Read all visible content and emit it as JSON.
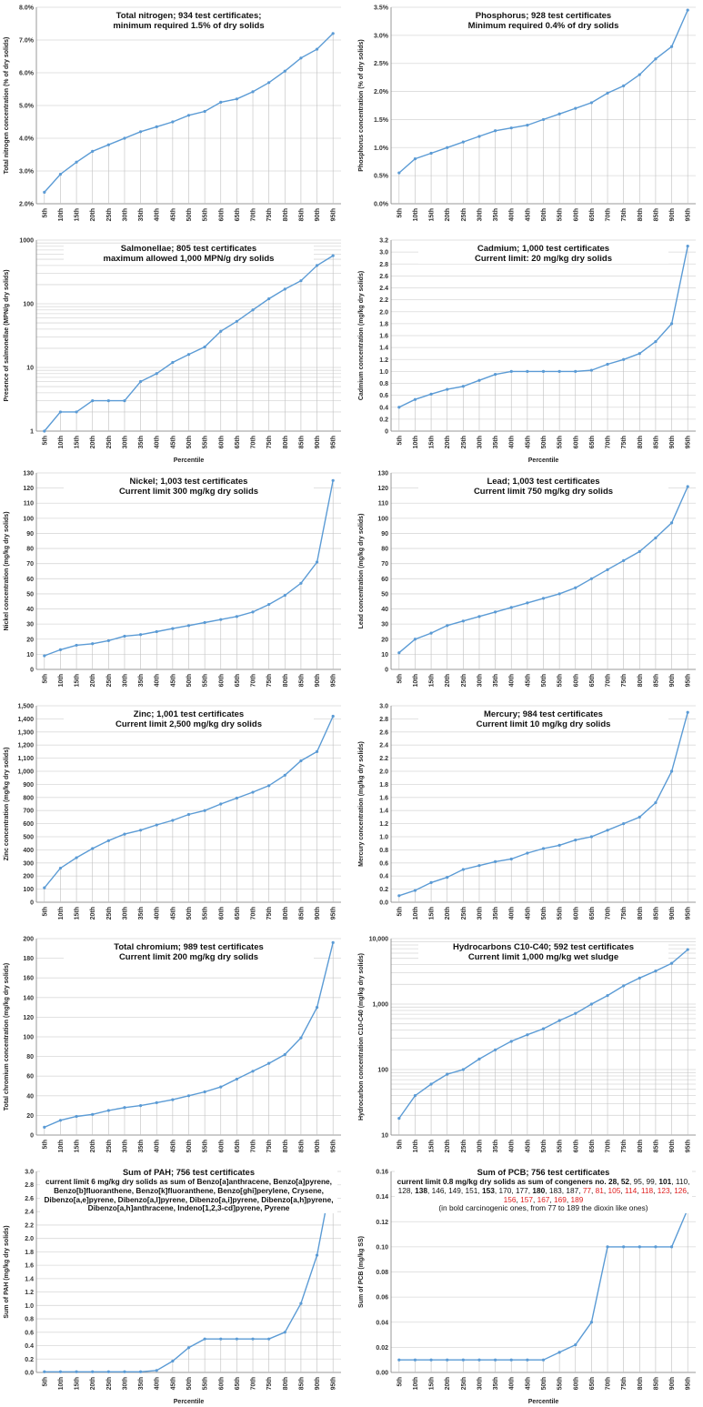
{
  "chart_data": [
    {
      "type": "line",
      "title": "Total nitrogen; 934 test certificates;",
      "subtitle": "minimum required 1.5% of dry solids",
      "ylabel": "Total nitrogen concentration (% of dry solids)",
      "xlabel": "",
      "yscale": "linear",
      "ylim": [
        2.0,
        8.0
      ],
      "yticks": [
        2.0,
        3.0,
        4.0,
        5.0,
        6.0,
        7.0,
        8.0
      ],
      "ytick_labels": [
        "2.0%",
        "3.0%",
        "4.0%",
        "5.0%",
        "6.0%",
        "7.0%",
        "8.0%"
      ],
      "categories": [
        "5th",
        "10th",
        "15th",
        "20th",
        "25th",
        "30th",
        "35th",
        "40th",
        "45th",
        "50th",
        "55th",
        "60th",
        "65th",
        "70th",
        "75th",
        "80th",
        "85th",
        "90th",
        "95th"
      ],
      "values": [
        2.35,
        2.9,
        3.27,
        3.6,
        3.8,
        4.0,
        4.2,
        4.35,
        4.5,
        4.7,
        4.82,
        5.1,
        5.2,
        5.42,
        5.7,
        6.05,
        6.45,
        6.72,
        7.2
      ],
      "grid": "horizontal"
    },
    {
      "type": "line",
      "title": "Phosphorus; 928 test certificates",
      "subtitle": "Minimum required 0.4% of dry solids",
      "ylabel": "Phosphorus concentration (% of dry solids)",
      "xlabel": "",
      "yscale": "linear",
      "ylim": [
        0.0,
        3.5
      ],
      "yticks": [
        0.0,
        0.5,
        1.0,
        1.5,
        2.0,
        2.5,
        3.0,
        3.5
      ],
      "ytick_labels": [
        "0.0%",
        "0.5%",
        "1.0%",
        "1.5%",
        "2.0%",
        "2.5%",
        "3.0%",
        "3.5%"
      ],
      "categories": [
        "5th",
        "10th",
        "15th",
        "20th",
        "25th",
        "30th",
        "35th",
        "40th",
        "45th",
        "50th",
        "55th",
        "60th",
        "65th",
        "70th",
        "75th",
        "80th",
        "85th",
        "90th",
        "95th"
      ],
      "values": [
        0.55,
        0.8,
        0.9,
        1.0,
        1.1,
        1.2,
        1.3,
        1.35,
        1.4,
        1.5,
        1.6,
        1.7,
        1.8,
        1.97,
        2.1,
        2.3,
        2.58,
        2.8,
        3.45
      ],
      "grid": "horizontal"
    },
    {
      "type": "line",
      "title": "Salmonellae; 805 test certificates",
      "subtitle": "maximum allowed 1,000 MPN/g dry solids",
      "ylabel": "Presence of salmonellae (MPN/g dry solids)",
      "xlabel": "Percentile",
      "yscale": "log",
      "ylim": [
        1,
        1000
      ],
      "yticks": [
        1,
        10,
        100,
        1000
      ],
      "ytick_labels": [
        "1",
        "10",
        "100",
        "1000"
      ],
      "categories": [
        "5th",
        "10th",
        "15th",
        "20th",
        "25th",
        "30th",
        "35th",
        "40th",
        "45th",
        "50th",
        "55th",
        "60th",
        "65th",
        "70th",
        "75th",
        "80th",
        "85th",
        "90th",
        "95th"
      ],
      "values": [
        1,
        2,
        2,
        3,
        3,
        3,
        6,
        8,
        12,
        16,
        21,
        37,
        53,
        80,
        120,
        170,
        230,
        400,
        570
      ],
      "grid": "log-minor"
    },
    {
      "type": "line",
      "title": "Cadmium; 1,000 test certificates",
      "subtitle": "Current limit: 20 mg/kg dry solids",
      "ylabel": "Cadmium concentration (mg/kg dry solids)",
      "xlabel": "Percentile",
      "yscale": "linear",
      "ylim": [
        0,
        3.2
      ],
      "yticks": [
        0,
        0.2,
        0.4,
        0.6,
        0.8,
        1.0,
        1.2,
        1.4,
        1.6,
        1.8,
        2.0,
        2.2,
        2.4,
        2.6,
        2.8,
        3.0,
        3.2
      ],
      "ytick_labels": [
        "0",
        "0.2",
        "0.4",
        "0.6",
        "0.8",
        "1.0",
        "1.2",
        "1.4",
        "1.6",
        "1.8",
        "2.0",
        "2.2",
        "2.4",
        "2.6",
        "2.8",
        "3.0",
        "3.2"
      ],
      "categories": [
        "5th",
        "10th",
        "15th",
        "20th",
        "25th",
        "30th",
        "35th",
        "40th",
        "45th",
        "50th",
        "55th",
        "60th",
        "65th",
        "70th",
        "75th",
        "80th",
        "85th",
        "90th",
        "95th"
      ],
      "values": [
        0.4,
        0.53,
        0.62,
        0.7,
        0.75,
        0.85,
        0.95,
        1.0,
        1.0,
        1.0,
        1.0,
        1.0,
        1.02,
        1.12,
        1.2,
        1.3,
        1.5,
        1.8,
        3.1
      ],
      "grid": "horizontal"
    },
    {
      "type": "line",
      "title": "Nickel; 1,003 test certificates",
      "subtitle": "Current limit 300 mg/kg dry solids",
      "ylabel": "Nickel concentration (mg/kg dry solids)",
      "xlabel": "",
      "yscale": "linear",
      "ylim": [
        0,
        130
      ],
      "yticks": [
        0,
        10,
        20,
        30,
        40,
        50,
        60,
        70,
        80,
        90,
        100,
        110,
        120,
        130
      ],
      "ytick_labels": [
        "0",
        "10",
        "20",
        "30",
        "40",
        "50",
        "60",
        "70",
        "80",
        "90",
        "100",
        "110",
        "120",
        "130"
      ],
      "categories": [
        "5th",
        "10th",
        "15th",
        "20th",
        "25th",
        "30th",
        "35th",
        "40th",
        "45th",
        "50th",
        "55th",
        "60th",
        "65th",
        "70th",
        "75th",
        "80th",
        "85th",
        "90th",
        "95th"
      ],
      "values": [
        9,
        13,
        16,
        17,
        19,
        22,
        23,
        25,
        27,
        29,
        31,
        33,
        35,
        38,
        43,
        49,
        57,
        71,
        125
      ],
      "grid": "horizontal"
    },
    {
      "type": "line",
      "title": "Lead; 1,003 test certificates",
      "subtitle": "Current limit 750 mg/kg dry solids",
      "ylabel": "Lead concentration (mg/kg dry solids)",
      "xlabel": "",
      "yscale": "linear",
      "ylim": [
        0,
        130
      ],
      "yticks": [
        0,
        10,
        20,
        30,
        40,
        50,
        60,
        70,
        80,
        90,
        100,
        110,
        120,
        130
      ],
      "ytick_labels": [
        "0",
        "10",
        "20",
        "30",
        "40",
        "50",
        "60",
        "70",
        "80",
        "90",
        "100",
        "110",
        "120",
        "130"
      ],
      "categories": [
        "5th",
        "10th",
        "15th",
        "20th",
        "25th",
        "30th",
        "35th",
        "40th",
        "45th",
        "50th",
        "55th",
        "60th",
        "65th",
        "70th",
        "75th",
        "80th",
        "85th",
        "90th",
        "95th"
      ],
      "values": [
        11,
        20,
        24,
        29,
        32,
        35,
        38,
        41,
        44,
        47,
        50,
        54,
        60,
        66,
        72,
        78,
        87,
        97,
        121
      ],
      "grid": "horizontal"
    },
    {
      "type": "line",
      "title": "Zinc; 1,001 test certificates",
      "subtitle": "Current limit 2,500 mg/kg dry solids",
      "ylabel": "Zinc concentration (mg/kg dry solids)",
      "xlabel": "",
      "yscale": "linear",
      "ylim": [
        0,
        1500
      ],
      "yticks": [
        0,
        100,
        200,
        300,
        400,
        500,
        600,
        700,
        800,
        900,
        1000,
        1100,
        1200,
        1300,
        1400,
        1500
      ],
      "ytick_labels": [
        "0",
        "100",
        "200",
        "300",
        "400",
        "500",
        "600",
        "700",
        "800",
        "900",
        "1,000",
        "1,100",
        "1,200",
        "1,300",
        "1,400",
        "1,500"
      ],
      "categories": [
        "5th",
        "10th",
        "15th",
        "20th",
        "25th",
        "30th",
        "35th",
        "40th",
        "45th",
        "50th",
        "55th",
        "60th",
        "65th",
        "70th",
        "75th",
        "80th",
        "85th",
        "90th",
        "95th"
      ],
      "values": [
        110,
        260,
        340,
        410,
        470,
        520,
        550,
        590,
        625,
        670,
        700,
        750,
        795,
        840,
        890,
        970,
        1080,
        1150,
        1420
      ],
      "grid": "horizontal"
    },
    {
      "type": "line",
      "title": "Mercury; 984 test certificates",
      "subtitle": "Current limit 10 mg/kg dry solids",
      "ylabel": "Mercury concentration (mg/kg dry solids)",
      "xlabel": "",
      "yscale": "linear",
      "ylim": [
        0,
        3.0
      ],
      "yticks": [
        0,
        0.2,
        0.4,
        0.6,
        0.8,
        1.0,
        1.2,
        1.4,
        1.6,
        1.8,
        2.0,
        2.2,
        2.4,
        2.6,
        2.8,
        3.0
      ],
      "ytick_labels": [
        "0.0",
        "0.2",
        "0.4",
        "0.6",
        "0.8",
        "1.0",
        "1.2",
        "1.4",
        "1.6",
        "1.8",
        "2.0",
        "2.2",
        "2.4",
        "2.6",
        "2.8",
        "3.0"
      ],
      "categories": [
        "5th",
        "10th",
        "15th",
        "20th",
        "25th",
        "30th",
        "35th",
        "40th",
        "45th",
        "50th",
        "55th",
        "60th",
        "65th",
        "70th",
        "75th",
        "80th",
        "85th",
        "90th",
        "95th"
      ],
      "values": [
        0.1,
        0.18,
        0.3,
        0.38,
        0.5,
        0.56,
        0.62,
        0.66,
        0.75,
        0.82,
        0.87,
        0.95,
        1.0,
        1.1,
        1.2,
        1.3,
        1.52,
        2.0,
        2.9
      ],
      "grid": "horizontal"
    },
    {
      "type": "line",
      "title": "Total chromium; 989 test certificates",
      "subtitle": "Current limit 200 mg/kg dry solids",
      "ylabel": "Total chromium concentration (mg/kg dry solids)",
      "xlabel": "",
      "yscale": "linear",
      "ylim": [
        0,
        200
      ],
      "yticks": [
        0,
        20,
        40,
        60,
        80,
        100,
        120,
        140,
        160,
        180,
        200
      ],
      "ytick_labels": [
        "0",
        "20",
        "40",
        "60",
        "80",
        "100",
        "120",
        "140",
        "160",
        "180",
        "200"
      ],
      "categories": [
        "5th",
        "10th",
        "15th",
        "20th",
        "25th",
        "30th",
        "35th",
        "40th",
        "45th",
        "50th",
        "55th",
        "60th",
        "65th",
        "70th",
        "75th",
        "80th",
        "85th",
        "90th",
        "95th"
      ],
      "values": [
        8,
        15,
        19,
        21,
        25,
        28,
        30,
        33,
        36,
        40,
        44,
        49,
        57,
        65,
        73,
        82,
        99,
        130,
        196
      ],
      "grid": "horizontal"
    },
    {
      "type": "line",
      "title": "Hydrocarbons C10-C40; 592 test certificates",
      "subtitle": "Current limit 1,000 mg/kg wet sludge",
      "ylabel": "Hydrocarbon concentration C10-C40 (mg/kg dry solids)",
      "xlabel": "",
      "yscale": "log",
      "ylim": [
        10,
        10000
      ],
      "yticks": [
        10,
        100,
        1000,
        10000
      ],
      "ytick_labels": [
        "10",
        "100",
        "1,000",
        "10,000"
      ],
      "categories": [
        "5th",
        "10th",
        "15th",
        "20th",
        "25th",
        "30th",
        "35th",
        "40th",
        "45th",
        "50th",
        "55th",
        "60th",
        "65th",
        "70th",
        "75th",
        "80th",
        "85th",
        "90th",
        "95th"
      ],
      "values": [
        18,
        40,
        60,
        85,
        100,
        145,
        200,
        270,
        340,
        420,
        560,
        720,
        1000,
        1350,
        1900,
        2500,
        3200,
        4200,
        6800
      ],
      "grid": "log-minor"
    },
    {
      "type": "line",
      "title": "Sum of PAH; 756 test certificates",
      "subtitle": "current limit 6 mg/kg dry solids as sum of Benzo[a]anthracene, Benzo[a]pyrene, Benzo[b]fluoranthene, Benzo[k]fluoranthene, Benzo[ghi]perylene, Crysene, Dibenzo[a,e]pyrene, Dibenzo[a,l]pyrene, Dibenzo[a,i]pyrene, Dibenzo[a,h]pyrene, Dibenzo[a,h]anthracene, Indeno[1,2,3-cd]pyrene, Pyrene",
      "ylabel": "Sum of PAH (mg/kg dry solids)",
      "xlabel": "Percentile",
      "yscale": "linear",
      "ylim": [
        0,
        3.0
      ],
      "yticks": [
        0,
        0.2,
        0.4,
        0.6,
        0.8,
        1.0,
        1.2,
        1.4,
        1.6,
        1.8,
        2.0,
        2.2,
        2.4,
        2.6,
        2.8,
        3.0
      ],
      "ytick_labels": [
        "0.0",
        "0.2",
        "0.4",
        "0.6",
        "0.8",
        "1.0",
        "1.2",
        "1.4",
        "1.6",
        "1.8",
        "2.0",
        "2.2",
        "2.4",
        "2.6",
        "2.8",
        "3.0"
      ],
      "categories": [
        "5th",
        "10th",
        "15th",
        "20th",
        "25th",
        "30th",
        "35th",
        "40th",
        "45th",
        "50th",
        "55th",
        "60th",
        "65th",
        "70th",
        "75th",
        "80th",
        "85th",
        "90th",
        "95th"
      ],
      "values": [
        0.01,
        0.01,
        0.01,
        0.01,
        0.01,
        0.01,
        0.01,
        0.03,
        0.17,
        0.37,
        0.5,
        0.5,
        0.5,
        0.5,
        0.5,
        0.6,
        1.03,
        1.75,
        3.0
      ],
      "grid": "horizontal"
    },
    {
      "type": "line",
      "title": "Sum of PCB; 756 test certificates",
      "subtitle": "current limit 0.8 mg/kg dry solids as sum of congeners no. 28, 52, 95, 99, 101, 110, 128, 138, 146, 149, 151, 153, 170, 177, 180, 183, 187, 77, 81, 105, 114, 118, 123, 126, 156, 157, 167, 169, 189",
      "note": "(in bold carcinogenic ones, from 77 to 189 the dioxin like ones)",
      "ylabel": "Sum of PCB (mg/kg SS)",
      "xlabel": "Percentile",
      "yscale": "linear",
      "ylim": [
        0,
        0.16
      ],
      "yticks": [
        0,
        0.02,
        0.04,
        0.06,
        0.08,
        0.1,
        0.12,
        0.14,
        0.16
      ],
      "ytick_labels": [
        "0.00",
        "0.02",
        "0.04",
        "0.06",
        "0.08",
        "0.10",
        "0.12",
        "0.14",
        "0.16"
      ],
      "categories": [
        "5th",
        "10th",
        "15th",
        "20th",
        "25th",
        "30th",
        "35th",
        "40th",
        "45th",
        "50th",
        "55th",
        "60th",
        "65th",
        "70th",
        "75th",
        "80th",
        "85th",
        "90th",
        "95th"
      ],
      "values": [
        0.01,
        0.01,
        0.01,
        0.01,
        0.01,
        0.01,
        0.01,
        0.01,
        0.01,
        0.01,
        0.016,
        0.022,
        0.04,
        0.1,
        0.1,
        0.1,
        0.1,
        0.1,
        0.13
      ],
      "grid": "horizontal"
    }
  ],
  "pcb_congeners": [
    {
      "t": "52",
      "s": "b"
    },
    {
      "t": "95",
      "s": "n"
    },
    {
      "t": "99",
      "s": "n"
    },
    {
      "t": "101",
      "s": "b"
    },
    {
      "t": "110",
      "s": "n"
    },
    {
      "t": "128",
      "s": "n"
    },
    {
      "t": "138",
      "s": "b"
    },
    {
      "t": "146",
      "s": "n"
    },
    {
      "t": "149",
      "s": "n"
    },
    {
      "t": "151",
      "s": "n"
    },
    {
      "t": "153",
      "s": "b"
    },
    {
      "t": "170",
      "s": "n"
    },
    {
      "t": "177",
      "s": "n"
    },
    {
      "t": "180",
      "s": "b"
    },
    {
      "t": "183",
      "s": "n"
    },
    {
      "t": "187",
      "s": "n"
    },
    {
      "t": "77",
      "s": "r"
    },
    {
      "t": "81",
      "s": "r"
    },
    {
      "t": "105",
      "s": "r"
    },
    {
      "t": "114",
      "s": "r"
    },
    {
      "t": "118",
      "s": "r"
    },
    {
      "t": "123",
      "s": "r"
    },
    {
      "t": "126",
      "s": "r"
    },
    {
      "t": "156",
      "s": "r"
    },
    {
      "t": "157",
      "s": "r"
    },
    {
      "t": "167",
      "s": "r"
    },
    {
      "t": "169",
      "s": "r"
    },
    {
      "t": "189",
      "s": "r"
    }
  ],
  "pcb_lead": "current limit 0.8 mg/kg dry solids as sum of congeners no. 28,",
  "colors": {
    "series": "#5b9bd5",
    "grid": "#d9d9d9",
    "drop": "#bfbfbf",
    "congener_dioxin_like": "#e02020"
  }
}
